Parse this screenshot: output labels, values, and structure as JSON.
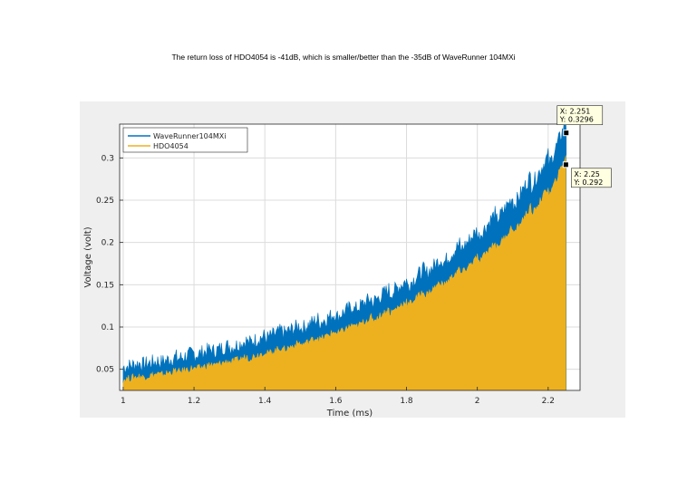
{
  "caption": "The return loss of HDO4054 is -41dB, which is smaller/better than the -35dB of WaveRunner 104MXi",
  "chart_data": {
    "type": "area",
    "title": "",
    "xlabel": "Time (ms)",
    "ylabel": "Voltage (volt)",
    "xlim": [
      0.99,
      2.29
    ],
    "ylim": [
      0.025,
      0.34
    ],
    "xticks": [
      1,
      1.2,
      1.4,
      1.6,
      1.8,
      2,
      2.2
    ],
    "xtick_labels": [
      "1",
      "1.2",
      "1.4",
      "1.6",
      "1.8",
      "2",
      "2.2"
    ],
    "yticks": [
      0.05,
      0.1,
      0.15,
      0.2,
      0.25,
      0.3
    ],
    "ytick_labels": [
      "0.05",
      "0.1",
      "0.15",
      "0.2",
      "0.25",
      "0.3"
    ],
    "grid": true,
    "legend_position": "top-left",
    "series": [
      {
        "name": "WaveRunner104MXi",
        "color": "#0072bd",
        "x": [
          1.0,
          1.1,
          1.2,
          1.3,
          1.4,
          1.5,
          1.6,
          1.7,
          1.8,
          1.9,
          2.0,
          2.1,
          2.2,
          2.251
        ],
        "y": [
          0.048,
          0.053,
          0.062,
          0.071,
          0.082,
          0.094,
          0.108,
          0.125,
          0.146,
          0.172,
          0.204,
          0.242,
          0.29,
          0.3296
        ]
      },
      {
        "name": "HDO4054",
        "color": "#edb120",
        "x": [
          1.0,
          1.1,
          1.2,
          1.3,
          1.4,
          1.5,
          1.6,
          1.7,
          1.8,
          1.9,
          2.0,
          2.1,
          2.2,
          2.25
        ],
        "y": [
          0.036,
          0.041,
          0.048,
          0.056,
          0.066,
          0.077,
          0.09,
          0.106,
          0.125,
          0.148,
          0.176,
          0.211,
          0.256,
          0.292
        ]
      }
    ],
    "datatips": [
      {
        "x_label": "X: 2.251",
        "y_label": "Y: 0.3296",
        "x": 2.251,
        "y": 0.3296
      },
      {
        "x_label": "X: 2.25",
        "y_label": "Y: 0.292",
        "x": 2.25,
        "y": 0.292
      }
    ]
  }
}
